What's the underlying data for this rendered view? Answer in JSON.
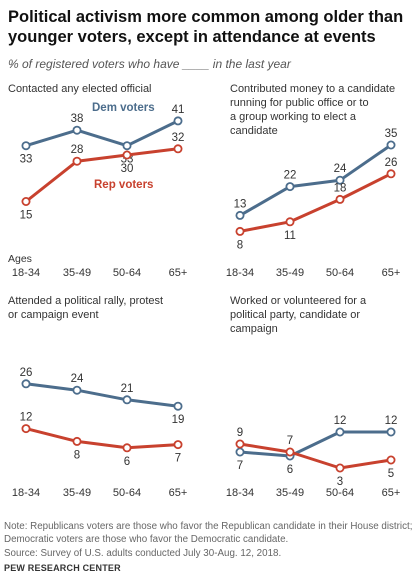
{
  "title": "Political activism more common among older than younger voters, except in attendance at events",
  "subtitle": "% of registered voters who have ____ in the last year",
  "notes": "Note: Republicans voters are those who favor the Republican candidate in their House district; Democratic voters are those who favor the Democratic candidate.",
  "source": "Source: Survey of U.S. adults conducted July 30-Aug. 12, 2018.",
  "brand": "PEW RESEARCH CENTER",
  "colors": {
    "dem": "#4c6d8c",
    "rep": "#c8412e"
  },
  "chart_data": [
    {
      "type": "line",
      "title": "Contacted any elected official",
      "categories": [
        "18-34",
        "35-49",
        "50-64",
        "65+"
      ],
      "axis_title": "Ages",
      "ylim": [
        0,
        45
      ],
      "series": [
        {
          "name": "Dem voters",
          "key": "dem",
          "values": [
            33,
            38,
            33,
            41
          ]
        },
        {
          "name": "Rep voters",
          "key": "rep",
          "values": [
            15,
            28,
            30,
            32
          ]
        }
      ]
    },
    {
      "type": "line",
      "title": "Contributed money to a candidate running for public office or to a group working to elect a candidate",
      "categories": [
        "18-34",
        "35-49",
        "50-64",
        "65+"
      ],
      "ylim": [
        0,
        45
      ],
      "series": [
        {
          "key": "dem",
          "values": [
            13,
            22,
            24,
            35
          ]
        },
        {
          "key": "rep",
          "values": [
            8,
            11,
            18,
            26
          ]
        }
      ]
    },
    {
      "type": "line",
      "title": "Attended a political rally, protest or campaign event",
      "categories": [
        "18-34",
        "35-49",
        "50-64",
        "65+"
      ],
      "ylim": [
        0,
        45
      ],
      "series": [
        {
          "key": "dem",
          "values": [
            26,
            24,
            21,
            19
          ]
        },
        {
          "key": "rep",
          "values": [
            12,
            8,
            6,
            7
          ]
        }
      ]
    },
    {
      "type": "line",
      "title": "Worked or volunteered for a political party, candidate or campaign",
      "categories": [
        "18-34",
        "35-49",
        "50-64",
        "65+"
      ],
      "ylim": [
        0,
        45
      ],
      "series": [
        {
          "key": "dem",
          "values": [
            7,
            6,
            12,
            12
          ]
        },
        {
          "key": "rep",
          "values": [
            9,
            7,
            3,
            5
          ]
        }
      ]
    }
  ]
}
